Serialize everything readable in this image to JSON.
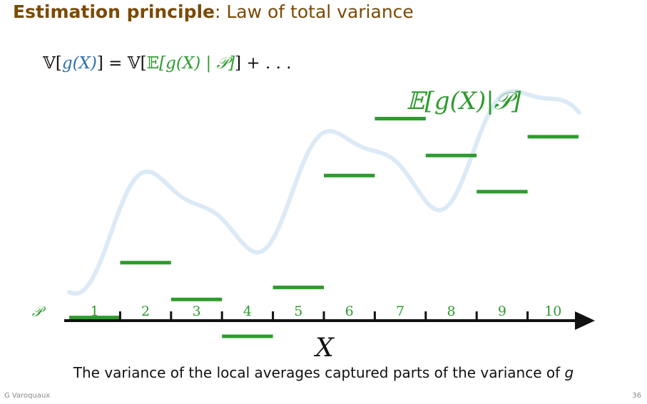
{
  "title": {
    "bold": "Estimation principle",
    "rest": ": Law of total variance"
  },
  "formula": {
    "v1": "𝕍",
    "lb1": "[",
    "g1": "g(X)",
    "rb1": "]",
    "eq": " = ",
    "v2": "𝕍",
    "lb2": "[",
    "e": "𝔼",
    "inner": "[g(X) | 𝒫]",
    "rb2": "]",
    "tail": " + . . ."
  },
  "diagram": {
    "expectation_label": "𝔼[g(X)|𝒫]",
    "partition_symbol": "𝒫",
    "axis_label": "X",
    "bins": [
      "1",
      "2",
      "3",
      "4",
      "5",
      "6",
      "7",
      "8",
      "9",
      "10"
    ],
    "bin_means": [
      -0.72,
      0.1,
      -0.45,
      -1.0,
      -0.27,
      1.4,
      2.25,
      1.7,
      1.16,
      1.98
    ],
    "curve_color": "#dceaf6",
    "step_color": "#2e9b2e",
    "axis_color": "#111111"
  },
  "caption": {
    "text": "The variance of the local averages captured parts of the variance of ",
    "var": "g"
  },
  "footer": {
    "author": "G Varoquaux",
    "page": "36"
  }
}
